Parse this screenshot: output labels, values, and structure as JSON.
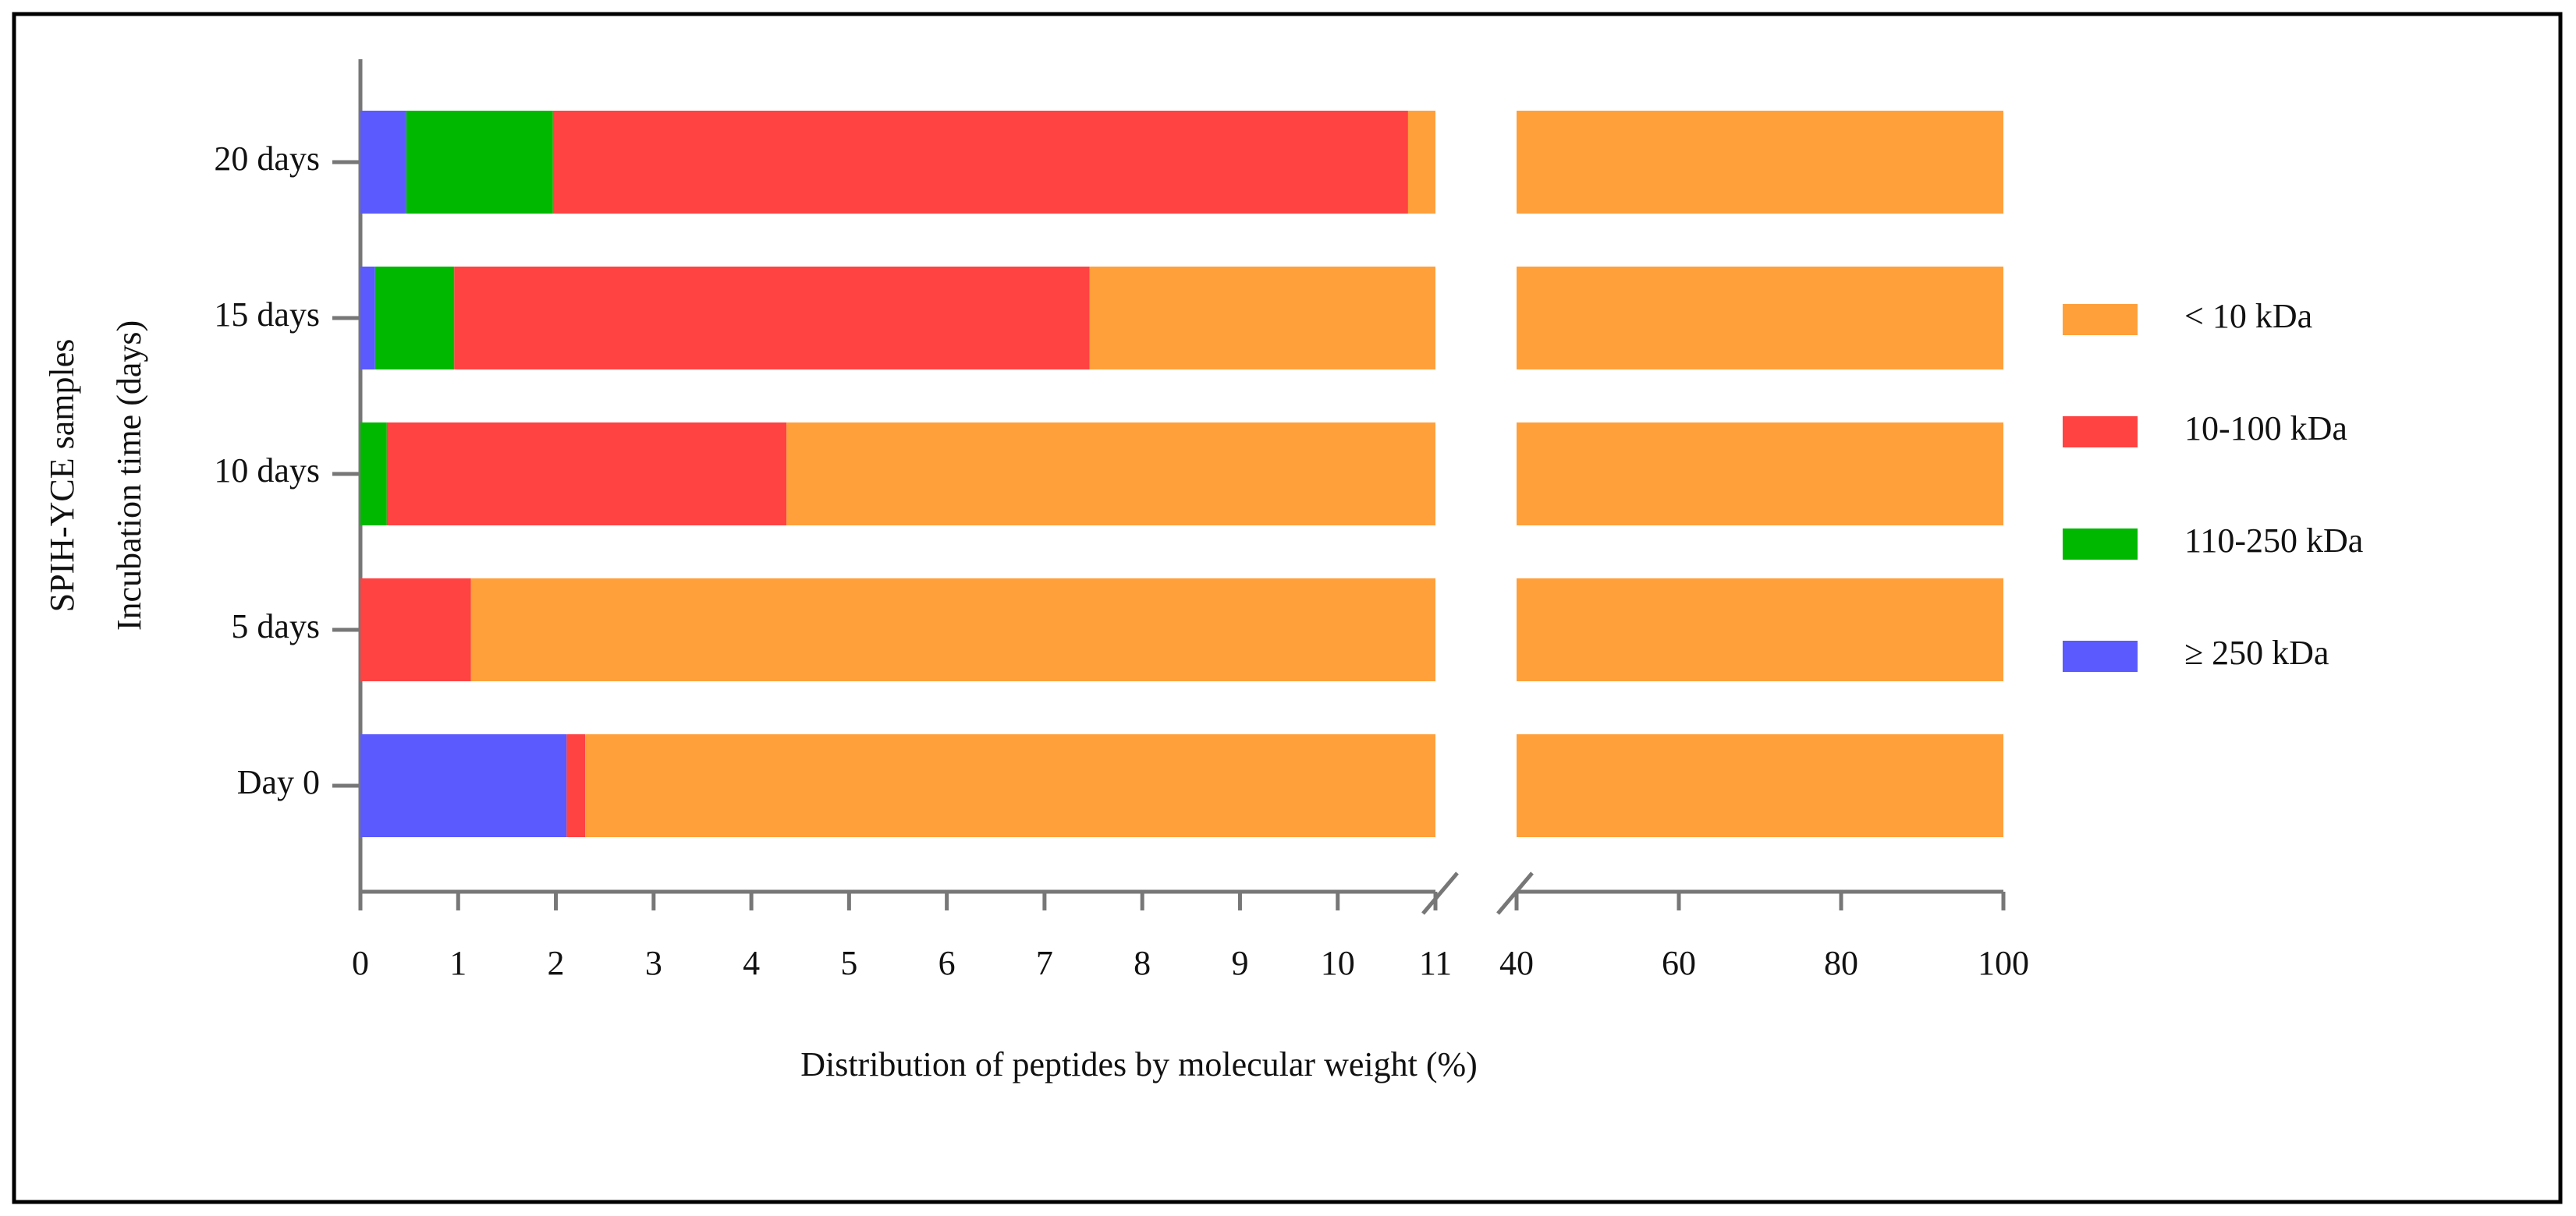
{
  "chart_data": {
    "type": "stacked-barh",
    "x_label": "Distribution of peptides by molecular weight (%)",
    "y_label": [
      "SPIH-YCE samples",
      "Incubation time (days)"
    ],
    "categories": [
      "20 days",
      "15 days",
      "10 days",
      "5 days",
      "Day 0"
    ],
    "series": [
      {
        "name": "≥ 250 kDa",
        "color": "#5a5aff",
        "values": [
          0.47,
          0.15,
          0,
          0,
          2.11
        ]
      },
      {
        "name": "110-250 kDa",
        "color": "#00b800",
        "values": [
          1.5,
          0.81,
          0.27,
          0,
          0
        ]
      },
      {
        "name": "10-100 kDa",
        "color": "#ff4242",
        "values": [
          8.75,
          6.5,
          4.09,
          1.13,
          0.19
        ]
      },
      {
        "name": "< 10 kDa",
        "color": "#ffa03a",
        "values": [
          89.28,
          92.54,
          95.64,
          98.87,
          97.7
        ]
      }
    ],
    "xlim": [
      0,
      100
    ],
    "xbreak": [
      11,
      40
    ],
    "xticks": [
      0,
      1,
      2,
      3,
      4,
      5,
      6,
      7,
      8,
      9,
      10,
      11,
      40,
      60,
      80,
      100
    ],
    "legend": "right"
  }
}
